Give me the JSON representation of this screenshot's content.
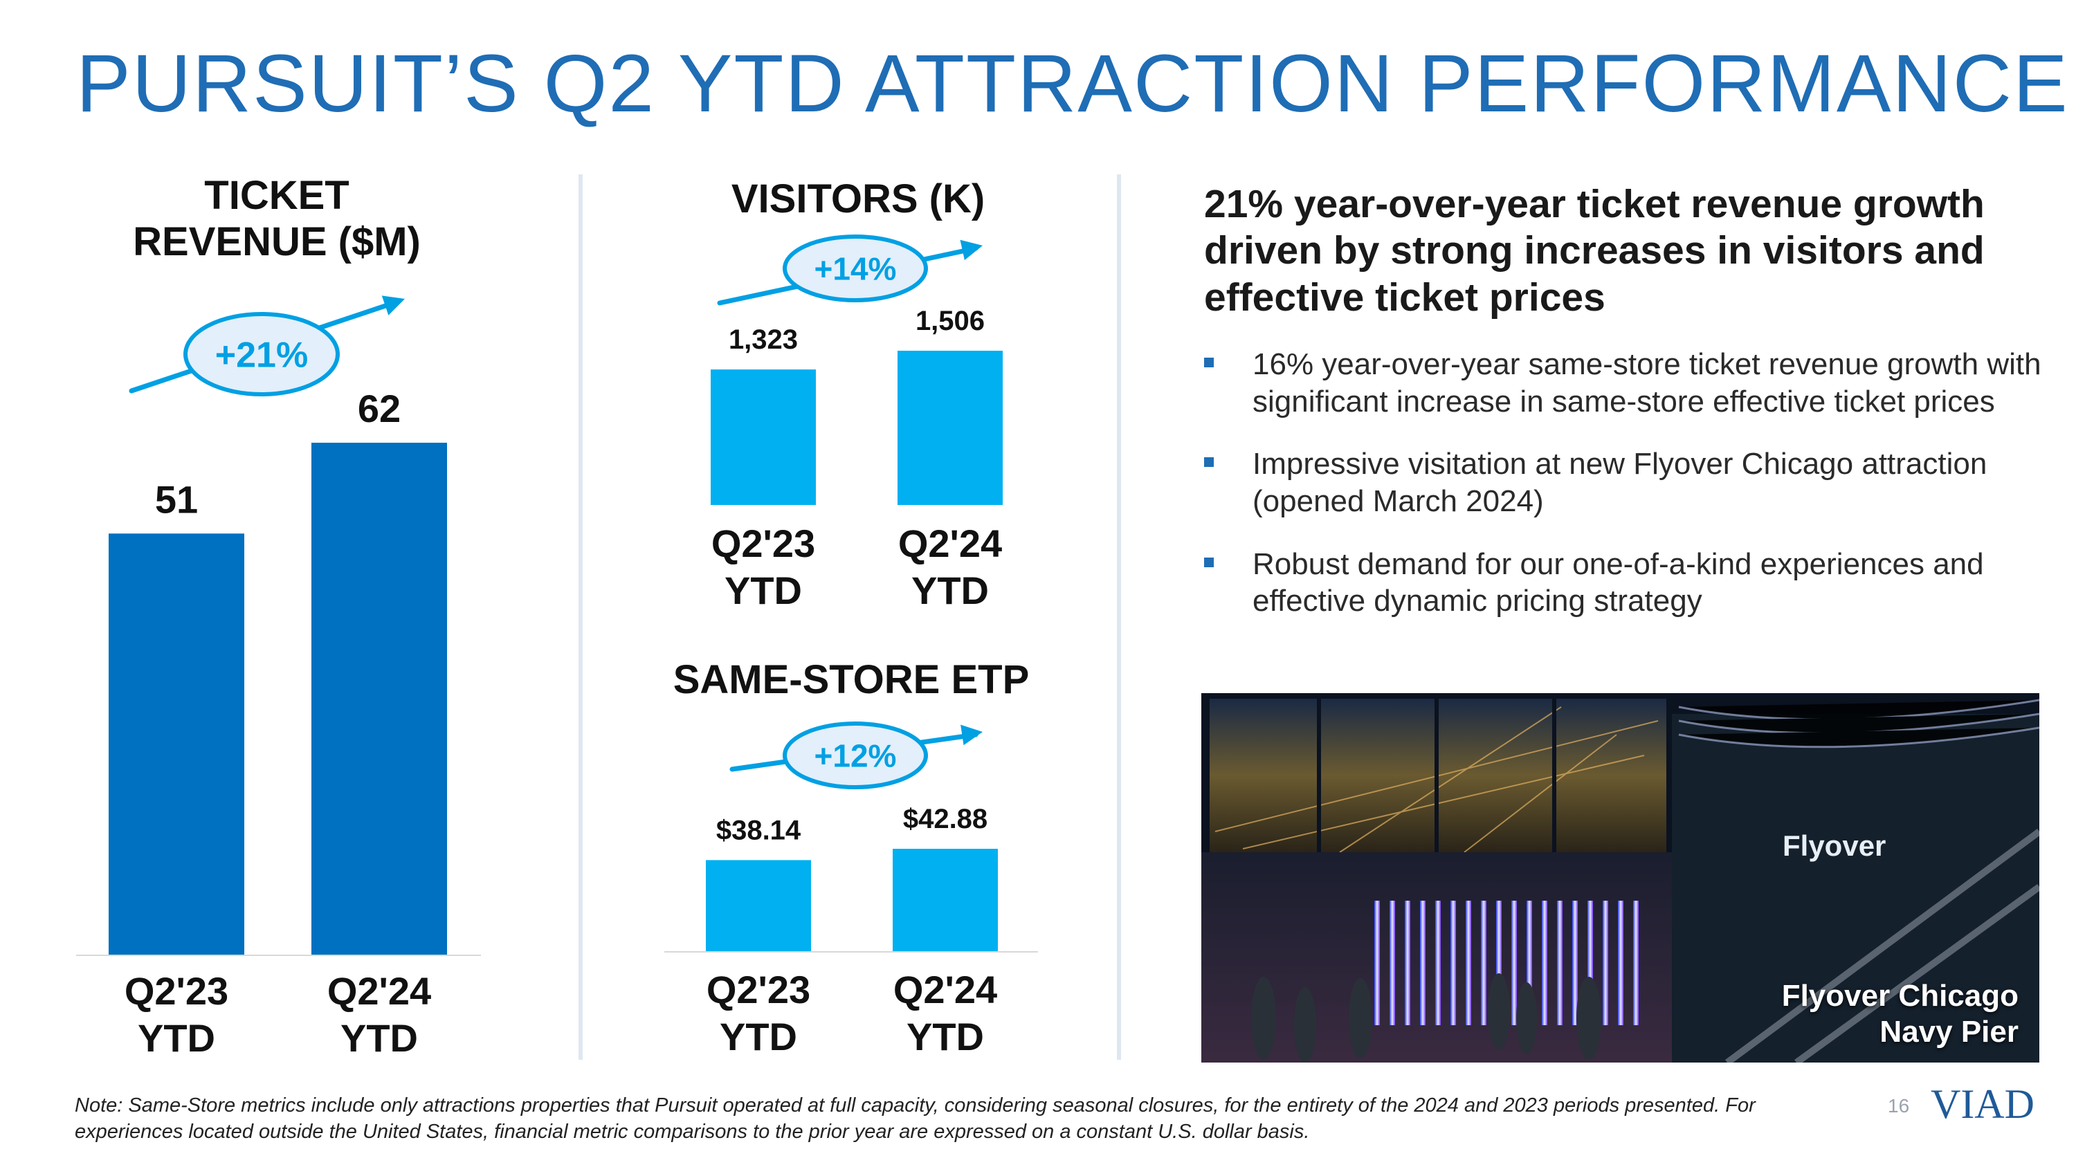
{
  "title": "PURSUIT’S Q2 YTD ATTRACTION PERFORMANCE",
  "colors": {
    "title_blue": "#1f6db5",
    "dark_bar": "#0070c0",
    "light_bar": "#00b0f0",
    "arrow": "#00a0e3",
    "badge_fill": "#e3effa"
  },
  "chart_data": [
    {
      "type": "bar",
      "title": "TICKET REVENUE ($M)",
      "title_lines": [
        "TICKET",
        "REVENUE ($M)"
      ],
      "categories": [
        "Q2'23 YTD",
        "Q2'24 YTD"
      ],
      "category_lines": [
        [
          "Q2'23",
          "YTD"
        ],
        [
          "Q2'24",
          "YTD"
        ]
      ],
      "values": [
        51,
        62
      ],
      "value_labels": [
        "51",
        "62"
      ],
      "ylim": [
        0,
        62
      ],
      "growth_label": "+21%"
    },
    {
      "type": "bar",
      "title": "VISITORS (K)",
      "categories": [
        "Q2'23 YTD",
        "Q2'24 YTD"
      ],
      "category_lines": [
        [
          "Q2'23",
          "YTD"
        ],
        [
          "Q2'24",
          "YTD"
        ]
      ],
      "values": [
        1323,
        1506
      ],
      "value_labels": [
        "1,323",
        "1,506"
      ],
      "ylim": [
        0,
        1506
      ],
      "growth_label": "+14%"
    },
    {
      "type": "bar",
      "title": "SAME-STORE ETP",
      "categories": [
        "Q2'23 YTD",
        "Q2'24 YTD"
      ],
      "category_lines": [
        [
          "Q2'23",
          "YTD"
        ],
        [
          "Q2'24",
          "YTD"
        ]
      ],
      "values": [
        38.14,
        42.88
      ],
      "value_labels": [
        "$38.14",
        "$42.88"
      ],
      "ylim": [
        0,
        42.88
      ],
      "growth_label": "+12%"
    }
  ],
  "right_panel": {
    "headline": "21% year-over-year ticket revenue growth driven by strong increases in visitors and effective ticket prices",
    "bullets": [
      "16% year-over-year same-store ticket revenue growth with significant increase in same-store effective ticket prices",
      "Impressive visitation at new Flyover Chicago attraction (opened March 2024)",
      "Robust demand for our one-of-a-kind experiences and effective dynamic pricing strategy"
    ],
    "photo_caption_line1": "Flyover Chicago",
    "photo_caption_line2": "Navy Pier",
    "photo_sign": "Flyover"
  },
  "footer": {
    "note": "Note: Same-Store metrics include only attractions properties that Pursuit operated at full capacity, considering seasonal closures, for the entirety of the 2024 and 2023 periods presented. For experiences located outside the United States, financial metric comparisons to the prior year are expressed on a constant U.S. dollar basis.",
    "page_number": "16",
    "logo": "VIAD"
  }
}
